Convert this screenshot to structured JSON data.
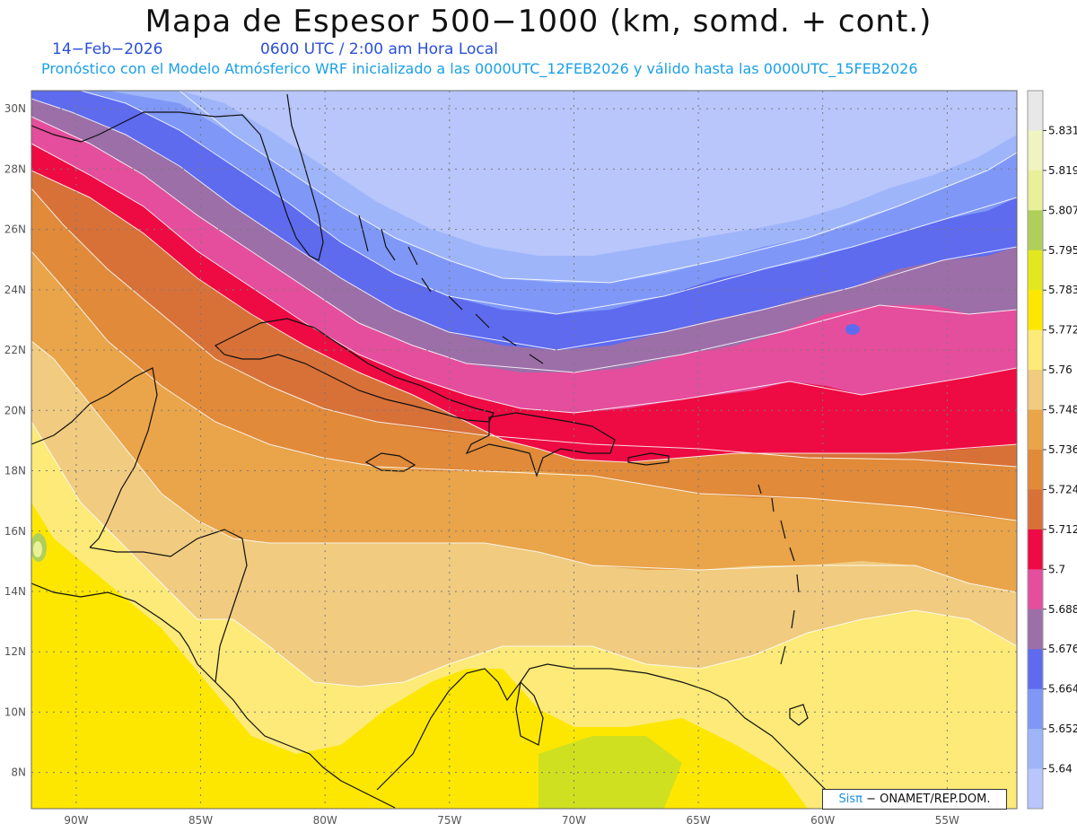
{
  "header": {
    "title": "Mapa de Espesor 500−1000 (km, somd. + cont.)",
    "date": "14−Feb−2026",
    "time": "0600 UTC / 2:00 am Hora Local",
    "forecast": "Pronóstico con el Modelo Atmósferico WRF inicializado a las 0000UTC_12FEB2026 y válido hasta las  0000UTC_15FEB2026"
  },
  "map": {
    "lat_ticks": [
      "30N",
      "28N",
      "26N",
      "24N",
      "22N",
      "20N",
      "18N",
      "16N",
      "14N",
      "12N",
      "10N",
      "8N"
    ],
    "lon_ticks": [
      "90W",
      "85W",
      "80W",
      "75W",
      "70W",
      "65W",
      "60W",
      "55W"
    ],
    "lat_range": [
      6.8,
      30.6
    ],
    "lon_range": [
      -91.8,
      -52.2
    ],
    "grid": true
  },
  "legend": {
    "labels": [
      "5.831",
      "5.819",
      "5.807",
      "5.795",
      "5.783",
      "5.772",
      "5.76",
      "5.748",
      "5.736",
      "5.724",
      "5.712",
      "5.7",
      "5.688",
      "5.676",
      "5.664",
      "5.652",
      "5.64"
    ],
    "colors": [
      "#e8e8e8",
      "#f0f4c0",
      "#e8f09a",
      "#b0cf5a",
      "#e3e81e",
      "#fde700",
      "#fdea78",
      "#f0cb80",
      "#eaa44a",
      "#e08a3a",
      "#d87138",
      "#ee0a42",
      "#e44e9c",
      "#9c6fa8",
      "#5e6bef",
      "#7f98f8",
      "#9fb5fa",
      "#b8c6fb"
    ],
    "colors_note": "top to bottom"
  },
  "credit": {
    "brand_a": "Sis",
    "brand_pi": "π",
    "text": "− ONAMET/REP.DOM."
  }
}
